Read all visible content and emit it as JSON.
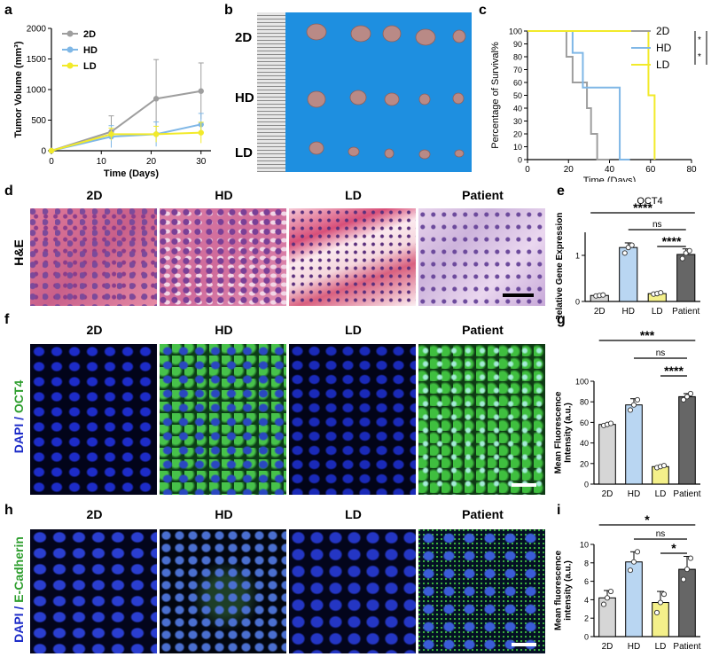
{
  "panels": {
    "a": "a",
    "b": "b",
    "c": "c",
    "d": "d",
    "e": "e",
    "f": "f",
    "g": "g",
    "h": "h",
    "i": "i"
  },
  "photo_columns": [
    "2D",
    "HD",
    "LD",
    "Patient"
  ],
  "row_labels": {
    "he": "H&E",
    "oct4_prefix": "DAPI",
    "oct4_sep": " / ",
    "oct4_marker": "OCT4",
    "ecad_prefix": "DAPI",
    "ecad_sep": " / ",
    "ecad_marker": "E-Cadherin"
  },
  "tumor_photo": {
    "rows": [
      "2D",
      "HD",
      "LD"
    ],
    "colors": {
      "background": "#1e8fe0",
      "ruler": "#d8d8d8",
      "tumor": "#b98a86"
    }
  },
  "colors": {
    "2D": "#9e9e9e",
    "HD": "#7fb7e6",
    "LD": "#f2ea2a",
    "Patient": "#555555",
    "bar_2D": "#d6d6d6",
    "bar_HD": "#b9d6f2",
    "bar_LD": "#f4f08a",
    "bar_Patient": "#666666",
    "he_pink": "#d9869c",
    "he_purple": "#7c4a9a",
    "dapi": "#1d2cc8",
    "oct4": "#3fbf3f"
  },
  "chart_data": [
    {
      "id": "a",
      "type": "line",
      "x": [
        0,
        12,
        21,
        30
      ],
      "xlabel": "Time (Days)",
      "ylabel": "Tumor Volume (mm³)",
      "xlim": [
        0,
        32
      ],
      "ylim": [
        0,
        2000
      ],
      "xticks": [
        "0",
        "10",
        "20",
        "30"
      ],
      "yticks": [
        "0",
        "500",
        "1000",
        "1500",
        "2000"
      ],
      "legend_position": "top-left",
      "series": [
        {
          "name": "2D",
          "values": [
            0,
            310,
            850,
            975
          ],
          "err": [
            0,
            260,
            640,
            460
          ]
        },
        {
          "name": "HD",
          "values": [
            0,
            230,
            270,
            430
          ],
          "err": [
            0,
            180,
            200,
            180
          ]
        },
        {
          "name": "LD",
          "values": [
            0,
            270,
            270,
            295
          ],
          "err": [
            0,
            100,
            130,
            170
          ]
        }
      ]
    },
    {
      "id": "c",
      "type": "line",
      "subtype": "survival-step",
      "xlabel": "Time (Days)",
      "ylabel": "Percentage of Survival%",
      "xlim": [
        0,
        80
      ],
      "ylim": [
        0,
        100
      ],
      "xticks": [
        "0",
        "20",
        "40",
        "60",
        "80"
      ],
      "yticks": [
        "0",
        "10",
        "20",
        "30",
        "40",
        "50",
        "60",
        "70",
        "80",
        "90",
        "100"
      ],
      "legend_position": "top-right",
      "significance": [
        "*",
        "*",
        "***"
      ],
      "series": [
        {
          "name": "2D",
          "x": [
            0,
            19,
            19,
            22,
            22,
            29,
            29,
            31,
            31,
            34,
            34,
            40
          ],
          "y": [
            100,
            100,
            80,
            80,
            60,
            60,
            40,
            40,
            20,
            20,
            0,
            0
          ]
        },
        {
          "name": "HD",
          "x": [
            0,
            22,
            22,
            27,
            27,
            31,
            31,
            45,
            45,
            50
          ],
          "y": [
            100,
            100,
            83,
            83,
            56,
            56,
            56,
            56,
            0,
            0
          ]
        },
        {
          "name": "LD",
          "x": [
            0,
            59,
            59,
            62,
            62
          ],
          "y": [
            100,
            100,
            50,
            50,
            0
          ]
        }
      ]
    },
    {
      "id": "e",
      "type": "bar",
      "title": "OCT4",
      "categories": [
        "2D",
        "HD",
        "LD",
        "Patient"
      ],
      "values": [
        0.13,
        1.17,
        0.17,
        1.02
      ],
      "err": [
        0.02,
        0.1,
        0.03,
        0.12
      ],
      "points": [
        [
          0.12,
          0.13,
          0.14
        ],
        [
          1.05,
          1.17,
          1.22
        ],
        [
          0.16,
          0.17,
          0.19
        ],
        [
          0.93,
          1.05,
          1.1
        ]
      ],
      "ylabel": "Relative Gene Expression",
      "ylim": [
        0,
        1.5
      ],
      "yticks": [
        "0",
        "1"
      ],
      "ytick_values": [
        0,
        1
      ],
      "significance": [
        {
          "from": "2D",
          "to": "Patient",
          "label": "****"
        },
        {
          "from": "HD",
          "to": "Patient",
          "label": "ns"
        },
        {
          "from": "LD",
          "to": "Patient",
          "label": "****"
        }
      ]
    },
    {
      "id": "g",
      "type": "bar",
      "categories": [
        "2D",
        "HD",
        "LD",
        "Patient"
      ],
      "values": [
        58,
        77,
        17,
        85
      ],
      "err": [
        1,
        6,
        1,
        3
      ],
      "points": [
        [
          57,
          58,
          59
        ],
        [
          72,
          77,
          82
        ],
        [
          16,
          17,
          18
        ],
        [
          82,
          85,
          88
        ]
      ],
      "ylabel": "Mean Fluorescence Intensity (a.u.)",
      "ylabel_lines": [
        "Mean Fluorescence",
        "Intensity (a.u.)"
      ],
      "ylim": [
        0,
        100
      ],
      "yticks": [
        "0",
        "20",
        "40",
        "60",
        "80",
        "100"
      ],
      "ytick_values": [
        0,
        20,
        40,
        60,
        80,
        100
      ],
      "significance": [
        {
          "from": "2D",
          "to": "Patient",
          "label": "***"
        },
        {
          "from": "HD",
          "to": "Patient",
          "label": "ns"
        },
        {
          "from": "LD",
          "to": "Patient",
          "label": "****"
        }
      ]
    },
    {
      "id": "i",
      "type": "bar",
      "categories": [
        "2D",
        "HD",
        "LD",
        "Patient"
      ],
      "values": [
        4.2,
        8.1,
        3.7,
        7.3
      ],
      "err": [
        0.8,
        1.1,
        1.2,
        1.4
      ],
      "points": [
        [
          3.5,
          4.2,
          4.9
        ],
        [
          7.2,
          8.1,
          9.2
        ],
        [
          2.6,
          3.7,
          4.6
        ],
        [
          6.2,
          7.3,
          8.5
        ]
      ],
      "ylabel": "Mean fluorescence intensity (a.u.)",
      "ylabel_lines": [
        "Mean fluorescence",
        "intensity (a.u.)"
      ],
      "ylim": [
        0,
        10
      ],
      "yticks": [
        "0",
        "2",
        "4",
        "6",
        "8",
        "10"
      ],
      "ytick_values": [
        0,
        2,
        4,
        6,
        8,
        10
      ],
      "significance": [
        {
          "from": "2D",
          "to": "Patient",
          "label": "*"
        },
        {
          "from": "HD",
          "to": "Patient",
          "label": "ns"
        },
        {
          "from": "LD",
          "to": "Patient",
          "label": "*"
        }
      ]
    }
  ]
}
